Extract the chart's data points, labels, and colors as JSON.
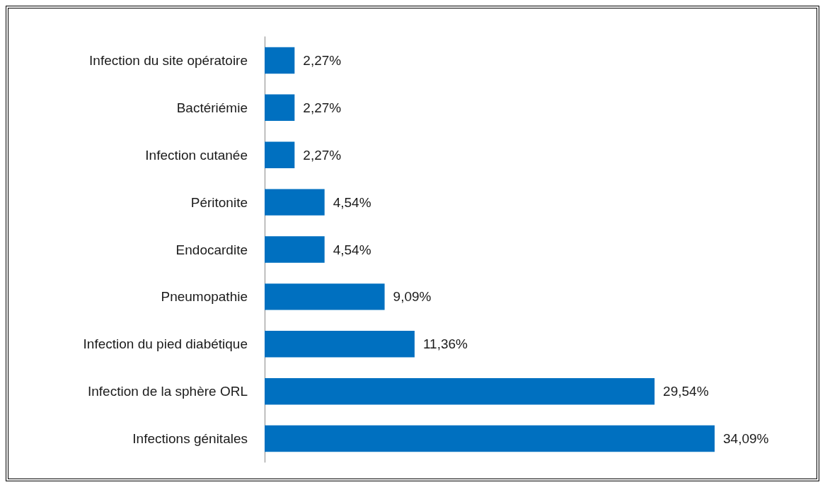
{
  "chart_data": {
    "type": "bar",
    "orientation": "horizontal",
    "categories": [
      "Infection du site opératoire",
      "Bactériémie",
      "Infection cutanée",
      "Péritonite",
      "Endocardite",
      "Pneumopathie",
      "Infection du pied diabétique",
      "Infection de la sphère ORL",
      "Infections génitales"
    ],
    "values": [
      2.27,
      2.27,
      2.27,
      4.54,
      4.54,
      9.09,
      11.36,
      29.54,
      34.09
    ],
    "value_labels": [
      "2,27%",
      "2,27%",
      "2,27%",
      "4,54%",
      "4,54%",
      "9,09%",
      "11,36%",
      "29,54%",
      "34,09%"
    ],
    "color": "#0070c0"
  }
}
